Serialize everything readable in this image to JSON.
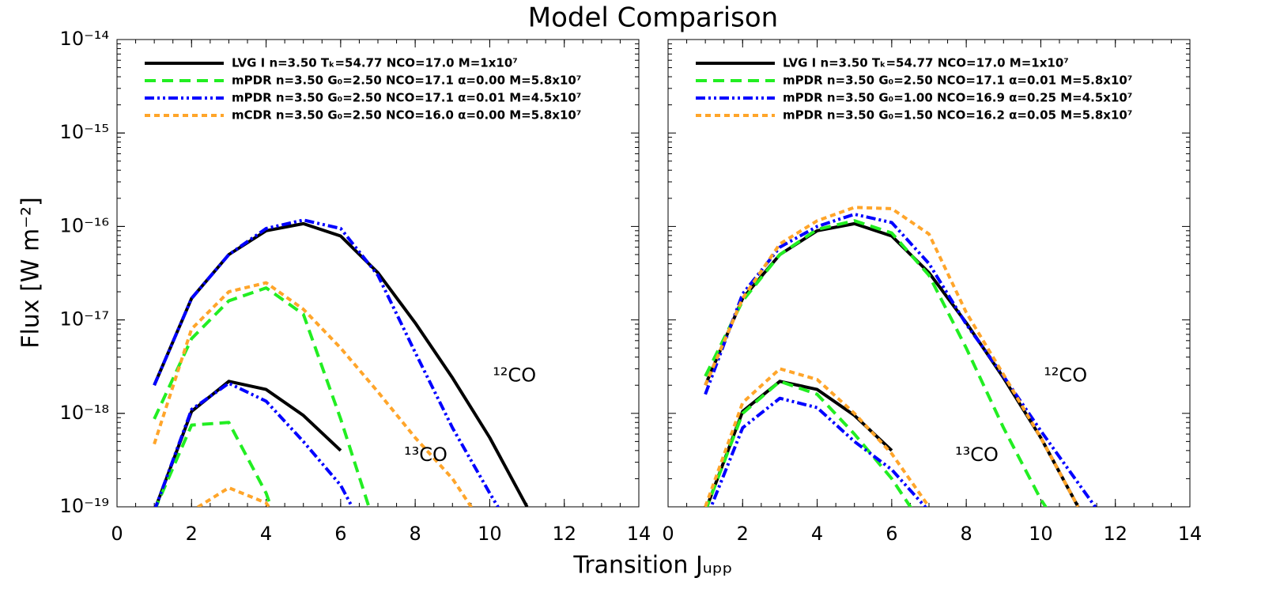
{
  "title": "Model Comparison",
  "x_label": "Transition Jᵤₚₚ",
  "y_label": "Flux [W m⁻²]",
  "chart_data": [
    {
      "type": "line",
      "log_y": true,
      "legend": "upper left",
      "annotations": [
        "¹²CO",
        "¹³CO"
      ],
      "xlim": [
        0,
        14
      ],
      "xticks": [
        0,
        2,
        4,
        6,
        8,
        10,
        12,
        14
      ],
      "ylim": [
        1e-19,
        1e-14
      ],
      "yticks": [
        {
          "value": 1e-19,
          "label": "10⁻¹⁹"
        },
        {
          "value": 1e-18,
          "label": "10⁻¹⁸"
        },
        {
          "value": 1e-17,
          "label": "10⁻¹⁷"
        },
        {
          "value": 1e-16,
          "label": "10⁻¹⁶"
        },
        {
          "value": 1e-15,
          "label": "10⁻¹⁵"
        },
        {
          "value": 1e-14,
          "label": "10⁻¹⁴"
        }
      ],
      "x": [
        1,
        2,
        3,
        4,
        5,
        6,
        7,
        8,
        9,
        10,
        11,
        12
      ],
      "series": [
        {
          "name": "LVG I n=3.50 Tₖ=54.77 NCO=17.0 M=1x10⁷",
          "color": "#000000",
          "style": "solid",
          "values": [
            2e-18,
            1.7e-17,
            5e-17,
            9e-17,
            1.07e-16,
            7.9e-17,
            3.2e-17,
            9.3e-18,
            2.4e-18,
            5.5e-19,
            1e-19,
            null
          ]
        },
        {
          "name": "mPDR n=3.50 G₀=2.50 NCO=17.1 α=0.00 M=5.8x10⁷",
          "color": "#22ee22",
          "style": "dashed",
          "values": [
            8.7e-19,
            6.3e-18,
            1.6e-17,
            2.2e-17,
            1.15e-17,
            8.7e-19,
            5e-20,
            null,
            null,
            null,
            null,
            null
          ]
        },
        {
          "name": "mPDR n=3.50 G₀=2.50 NCO=17.1 α=0.01 M=4.5x10⁷",
          "color": "#0000ff",
          "style": "dashdotdot",
          "values": [
            2e-18,
            1.7e-17,
            5e-17,
            9.5e-17,
            1.17e-16,
            9.5e-17,
            3e-17,
            4.5e-18,
            7e-19,
            1.4e-19,
            3e-20,
            null
          ]
        },
        {
          "name": "mCDR n=3.50 G₀=2.50 NCO=16.0 α=0.00 M=5.8x10⁷",
          "color": "#ffa52a",
          "style": "dotted",
          "values": [
            4.7e-19,
            8e-18,
            2e-17,
            2.5e-17,
            1.3e-17,
            5e-18,
            1.7e-18,
            5.5e-19,
            2e-19,
            5e-20,
            null,
            null
          ]
        },
        {
          "color": "#000000",
          "style": "solid",
          "values": [
            9e-20,
            1.05e-18,
            2.2e-18,
            1.8e-18,
            9.5e-19,
            4e-19,
            null,
            null,
            null,
            null,
            null,
            null
          ]
        },
        {
          "color": "#22ee22",
          "style": "dashed",
          "values": [
            9e-20,
            7.5e-19,
            8e-19,
            1.4e-19,
            1e-20,
            null,
            null,
            null,
            null,
            null,
            null,
            null
          ]
        },
        {
          "color": "#0000ff",
          "style": "dashdotdot",
          "values": [
            9e-20,
            1.1e-18,
            2.1e-18,
            1.35e-18,
            5e-19,
            1.7e-19,
            3e-20,
            null,
            null,
            null,
            null,
            null
          ]
        },
        {
          "color": "#ffa52a",
          "style": "dotted",
          "values": [
            4e-20,
            9e-20,
            1.6e-19,
            1.1e-19,
            3e-20,
            null,
            null,
            null,
            null,
            null,
            null,
            null
          ]
        }
      ]
    },
    {
      "type": "line",
      "log_y": true,
      "legend": "upper left",
      "annotations": [
        "¹²CO",
        "¹³CO"
      ],
      "xlim": [
        0,
        14
      ],
      "xticks": [
        0,
        2,
        4,
        6,
        8,
        10,
        12,
        14
      ],
      "ylim": [
        1e-19,
        1e-14
      ],
      "x": [
        1,
        2,
        3,
        4,
        5,
        6,
        7,
        8,
        9,
        10,
        11,
        12
      ],
      "series": [
        {
          "name": "LVG I n=3.50 Tₖ=54.77 NCO=17.0 M=1x10⁷",
          "color": "#000000",
          "style": "solid",
          "values": [
            2e-18,
            1.7e-17,
            5e-17,
            9e-17,
            1.07e-16,
            7.9e-17,
            3.2e-17,
            9.3e-18,
            2.4e-18,
            5.5e-19,
            1e-19,
            null
          ]
        },
        {
          "name": "mPDR n=3.50 G₀=2.50 NCO=17.1 α=0.01 M=5.8x10⁷",
          "color": "#22ee22",
          "style": "dashed",
          "values": [
            2.5e-18,
            1.6e-17,
            5e-17,
            9.3e-17,
            1.15e-16,
            8.5e-17,
            3e-17,
            5e-18,
            7e-19,
            1.2e-19,
            3e-20,
            null
          ]
        },
        {
          "name": "mPDR n=3.50 G₀=1.00 NCO=16.9 α=0.25 M=4.5x10⁷",
          "color": "#0000ff",
          "style": "dashdotdot",
          "values": [
            1.6e-18,
            1.9e-17,
            6e-17,
            1e-16,
            1.35e-16,
            1.1e-16,
            4e-17,
            9e-18,
            2.5e-18,
            6.5e-19,
            1.8e-19,
            5e-20
          ]
        },
        {
          "name": "mPDR n=3.50 G₀=1.50 NCO=16.2 α=0.05 M=5.8x10⁷",
          "color": "#ffa52a",
          "style": "dotted",
          "values": [
            2e-18,
            1.7e-17,
            6.5e-17,
            1.15e-16,
            1.6e-16,
            1.55e-16,
            8.3e-17,
            1.2e-17,
            2.6e-18,
            5.5e-19,
            1e-19,
            null
          ]
        },
        {
          "color": "#000000",
          "style": "solid",
          "values": [
            9e-20,
            1.05e-18,
            2.2e-18,
            1.8e-18,
            9.5e-19,
            4e-19,
            null,
            null,
            null,
            null,
            null,
            null
          ]
        },
        {
          "color": "#22ee22",
          "style": "dashed",
          "values": [
            9e-20,
            1e-18,
            2.2e-18,
            1.6e-18,
            6e-19,
            2e-19,
            5e-20,
            null,
            null,
            null,
            null,
            null
          ]
        },
        {
          "color": "#0000ff",
          "style": "dashdotdot",
          "values": [
            7e-20,
            7e-19,
            1.45e-18,
            1.15e-18,
            5e-19,
            2.5e-19,
            9e-20,
            null,
            null,
            null,
            null,
            null
          ]
        },
        {
          "color": "#ffa52a",
          "style": "dotted",
          "values": [
            1e-19,
            1.3e-18,
            3e-18,
            2.3e-18,
            1e-18,
            3.7e-19,
            1e-19,
            null,
            null,
            null,
            null,
            null
          ]
        }
      ]
    }
  ]
}
